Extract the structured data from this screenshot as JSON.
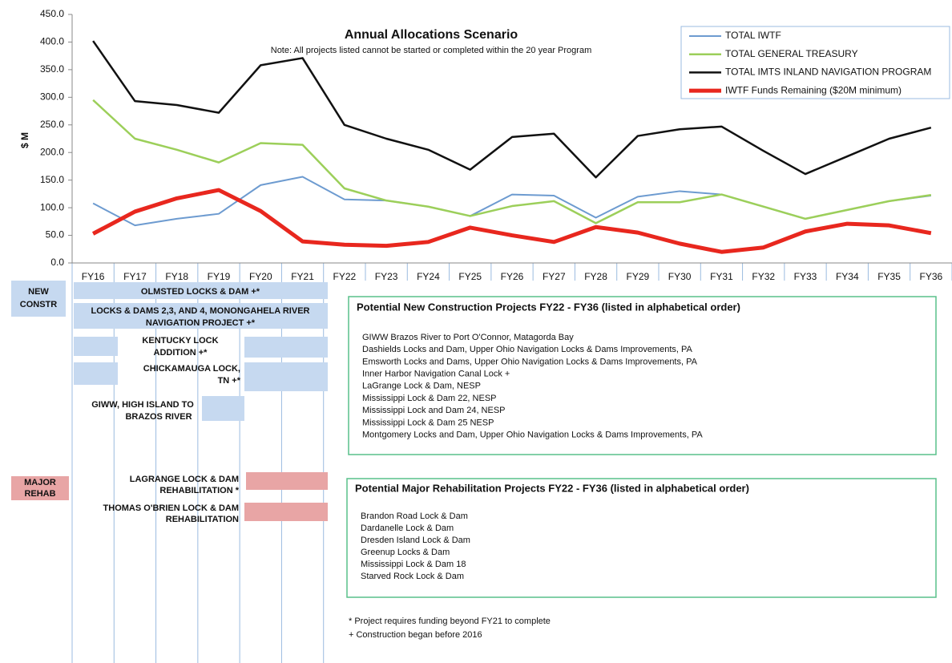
{
  "chart_data": {
    "type": "line",
    "title": "Annual Allocations Scenario",
    "subtitle": "Note:  All projects listed cannot be started or completed within the 20 year Program",
    "y_label": "$ M",
    "categories": [
      "FY16",
      "FY17",
      "FY18",
      "FY19",
      "FY20",
      "FY21",
      "FY22",
      "FY23",
      "FY24",
      "FY25",
      "FY26",
      "FY27",
      "FY28",
      "FY29",
      "FY30",
      "FY31",
      "FY32",
      "FY33",
      "FY34",
      "FY35",
      "FY36"
    ],
    "series": [
      {
        "name": "TOTAL IWTF",
        "color": "#6d9bd0",
        "width": 2,
        "values": [
          108,
          68,
          80,
          89,
          141,
          156,
          115,
          113,
          102,
          85,
          124,
          122,
          82,
          120,
          130,
          124,
          102,
          80,
          96,
          112,
          122
        ]
      },
      {
        "name": "TOTAL GENERAL TREASURY",
        "color": "#9ccf5a",
        "width": 2.5,
        "values": [
          295,
          225,
          205,
          182,
          217,
          214,
          135,
          113,
          102,
          85,
          103,
          112,
          72,
          110,
          110,
          124,
          102,
          80,
          96,
          112,
          123
        ]
      },
      {
        "name": "TOTAL IMTS INLAND NAVIGATION PROGRAM",
        "color": "#111111",
        "width": 2.5,
        "values": [
          402,
          293,
          286,
          272,
          358,
          371,
          250,
          225,
          205,
          169,
          228,
          234,
          155,
          230,
          242,
          247,
          203,
          161,
          193,
          225,
          245
        ]
      },
      {
        "name": "IWTF Funds Remaining ($20M minimum)",
        "color": "#e8271e",
        "width": 5,
        "values": [
          53,
          93,
          117,
          132,
          94,
          39,
          33,
          31,
          38,
          64,
          50,
          38,
          65,
          55,
          35,
          20,
          28,
          57,
          71,
          68,
          54
        ]
      }
    ],
    "ylim": [
      0,
      450
    ],
    "yticks": [
      {
        "value": 0,
        "label": "0.0"
      },
      {
        "value": 50,
        "label": "50.0"
      },
      {
        "value": 100,
        "label": "100.0"
      },
      {
        "value": 150,
        "label": "150.0"
      },
      {
        "value": 200,
        "label": "200.0"
      },
      {
        "value": 250,
        "label": "250.0"
      },
      {
        "value": 300,
        "label": "300.0"
      },
      {
        "value": 350,
        "label": "350.0"
      },
      {
        "value": 400,
        "label": "400.0"
      },
      {
        "value": 450,
        "label": "450.0"
      }
    ],
    "grid": false,
    "legend": "top-right"
  },
  "schedule": {
    "new_label": [
      "NEW",
      "CONSTR"
    ],
    "new_projects": [
      [
        "OLMSTED LOCKS & DAM +*"
      ],
      [
        "LOCKS & DAMS 2,3, AND 4, MONONGAHELA RIVER",
        "NAVIGATION PROJECT  +*"
      ],
      [
        "KENTUCKY LOCK",
        "ADDITION +*"
      ],
      [
        "CHICKAMAUGA LOCK,",
        "TN +*"
      ],
      [
        "GIWW, HIGH ISLAND TO",
        "BRAZOS RIVER"
      ]
    ],
    "rehab_label": [
      "MAJOR",
      "REHAB"
    ],
    "rehab_projects": [
      [
        "LAGRANGE LOCK & DAM",
        "REHABILITATION *"
      ],
      [
        "THOMAS O'BRIEN LOCK & DAM",
        "REHABILITATION"
      ]
    ]
  },
  "new_construction": {
    "title": "Potential New Construction Projects FY22 - FY36 (listed in alphabetical order)",
    "items": [
      "GIWW Brazos River to Port O'Connor, Matagorda Bay",
      "Dashields Locks and Dam, Upper Ohio Navigation Locks & Dams Improvements, PA",
      "Emsworth Locks and Dams, Upper Ohio Navigation Locks & Dams Improvements, PA",
      "Inner Harbor Navigation Canal Lock  +",
      "LaGrange Lock & Dam, NESP",
      "Mississippi Lock & Dam 22, NESP",
      "Mississippi Lock and Dam 24, NESP",
      "Mississippi Lock & Dam 25 NESP",
      "Montgomery Locks and Dam, Upper Ohio Navigation Locks & Dams Improvements, PA"
    ]
  },
  "major_rehabilitation": {
    "title": "Potential Major Rehabilitation Projects FY22 - FY36 (listed in alphabetical order)",
    "items": [
      "Brandon Road Lock & Dam",
      "Dardanelle Lock & Dam",
      "Dresden Island Lock & Dam",
      "Greenup Locks & Dam",
      "Mississippi Lock & Dam 18",
      "Starved Rock Lock & Dam"
    ]
  },
  "footnotes": [
    "* Project requires funding beyond FY21 to complete",
    "+ Construction began before 2016"
  ]
}
